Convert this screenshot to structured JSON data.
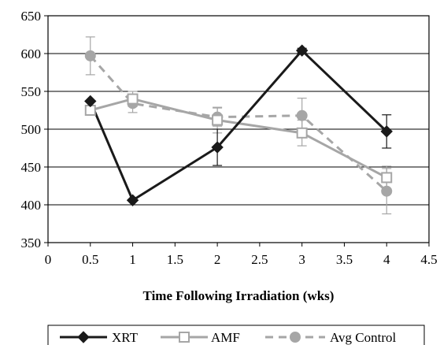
{
  "chart_data": {
    "type": "line",
    "title": "",
    "xlabel": "Time Following Irradiation (wks)",
    "ylabel": "",
    "xlim": [
      0,
      4.5
    ],
    "ylim": [
      350,
      650
    ],
    "x_ticks": [
      "0",
      "0.5",
      "1",
      "1.5",
      "2",
      "2.5",
      "3",
      "3.5",
      "4",
      "4.5"
    ],
    "y_ticks": [
      "350",
      "400",
      "450",
      "500",
      "550",
      "600",
      "650"
    ],
    "grid": "horizontal",
    "legend_position": "bottom",
    "x": [
      0.5,
      1,
      2,
      3,
      4
    ],
    "series": [
      {
        "name": "XRT",
        "values": [
          537,
          406,
          476,
          604,
          497
        ],
        "error": [
          0,
          0,
          24,
          3,
          22
        ],
        "color": "#1a1a1a",
        "style": "solid",
        "marker": "diamond-filled"
      },
      {
        "name": "AMF",
        "values": [
          525,
          540,
          512,
          495,
          436
        ],
        "error": [
          0,
          10,
          17,
          17,
          15
        ],
        "color": "#a6a6a6",
        "style": "solid",
        "marker": "square-open"
      },
      {
        "name": "Avg Control",
        "values": [
          597,
          534,
          516,
          518,
          418
        ],
        "error": [
          25,
          12,
          12,
          23,
          30
        ],
        "color": "#a6a6a6",
        "style": "dashed",
        "marker": "circle-filled"
      }
    ]
  }
}
